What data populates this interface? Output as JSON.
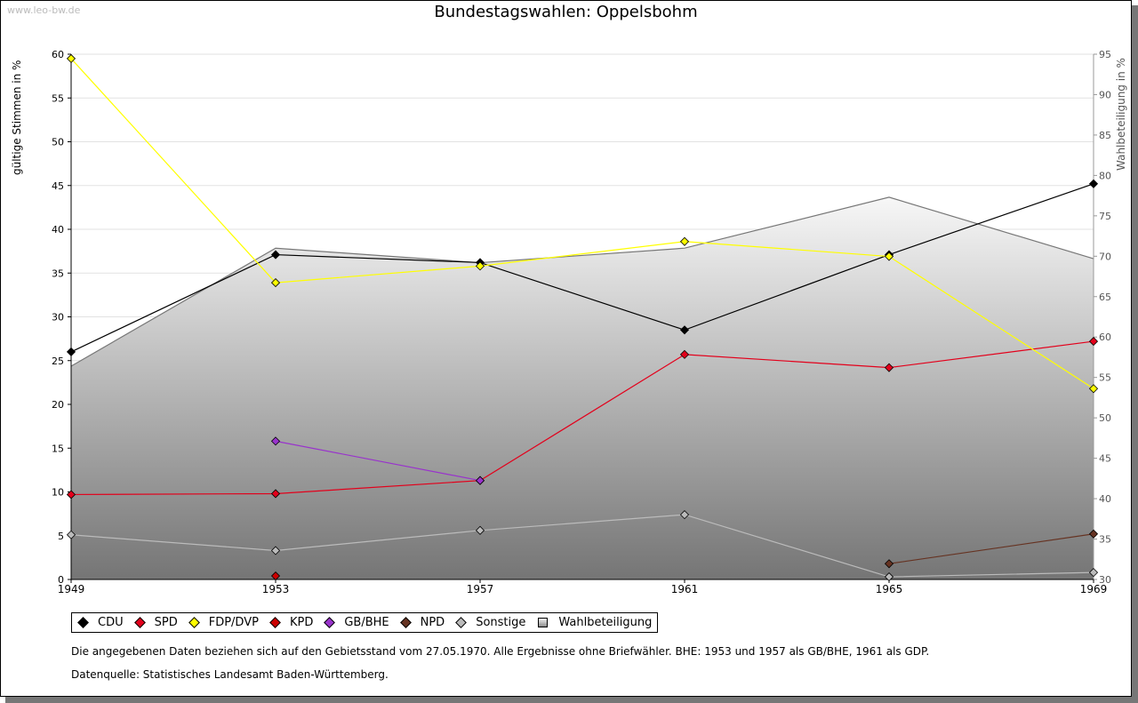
{
  "watermark": "www.leo-bw.de",
  "chart_data": {
    "type": "line",
    "title": "Bundestagswahlen: Oppelsbohm",
    "ylabel": "gültige Stimmen in %",
    "y2label": "Wahlbeteiligung in %",
    "x": [
      "1949",
      "1953",
      "1957",
      "1961",
      "1965",
      "1969"
    ],
    "ylim": [
      0,
      60
    ],
    "y2lim": [
      30,
      95
    ],
    "yticks": [
      "0",
      "5",
      "10",
      "15",
      "20",
      "25",
      "30",
      "35",
      "40",
      "45",
      "50",
      "55",
      "60"
    ],
    "y2ticks": [
      "30",
      "35",
      "40",
      "45",
      "50",
      "55",
      "60",
      "65",
      "70",
      "75",
      "80",
      "85",
      "90",
      "95"
    ],
    "grid": true,
    "series": [
      {
        "name": "CDU",
        "color": "#000000",
        "values": [
          26.0,
          37.1,
          36.2,
          28.5,
          37.1,
          45.2
        ]
      },
      {
        "name": "SPD",
        "color": "#e3001b",
        "values": [
          9.7,
          9.8,
          11.3,
          25.7,
          24.2,
          27.2
        ]
      },
      {
        "name": "FDP/DVP",
        "color": "#ffff00",
        "values": [
          59.5,
          33.9,
          35.8,
          38.6,
          36.9,
          21.8
        ]
      },
      {
        "name": "KPD",
        "color": "#cc0000",
        "values": [
          null,
          0.4,
          null,
          null,
          null,
          null
        ]
      },
      {
        "name": "GB/BHE",
        "color": "#9933cc",
        "values": [
          null,
          15.8,
          11.3,
          null,
          null,
          null
        ]
      },
      {
        "name": "NPD",
        "color": "#663322",
        "values": [
          null,
          null,
          null,
          null,
          1.8,
          5.2
        ]
      },
      {
        "name": "Sonstige",
        "color": "#bbbbbb",
        "values": [
          5.1,
          3.3,
          5.6,
          7.4,
          0.3,
          0.8
        ]
      }
    ],
    "turnout": {
      "name": "Wahlbeteiligung",
      "color": "#777777",
      "values": [
        56.4,
        71.0,
        69.2,
        71.0,
        77.3,
        69.7
      ]
    },
    "legend": [
      "CDU",
      "SPD",
      "FDP/DVP",
      "KPD",
      "GB/BHE",
      "NPD",
      "Sonstige",
      "Wahlbeteiligung"
    ],
    "legend_placement": "bottom-left"
  },
  "notes": {
    "line1": "Die angegebenen Daten beziehen sich auf den Gebietsstand vom 27.05.1970. Alle Ergebnisse ohne Briefwähler. BHE: 1953 und 1957 als GB/BHE, 1961 als GDP.",
    "line2": "Datenquelle: Statistisches Landesamt Baden-Württemberg."
  }
}
